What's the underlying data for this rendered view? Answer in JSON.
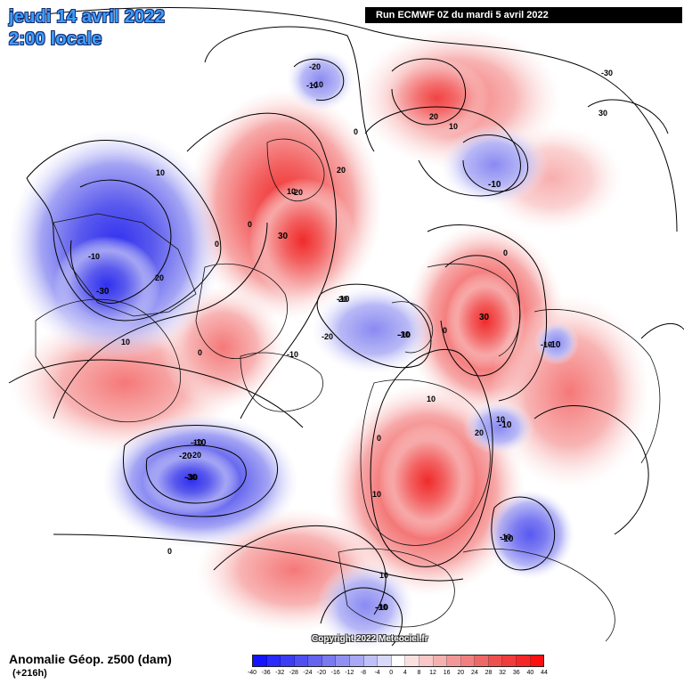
{
  "header": {
    "date_line": "jeudi 14 avril 2022",
    "time_line": "2:00 locale",
    "run_info": "Run ECMWF 0Z du mardi 5 avril 2022"
  },
  "footer": {
    "field_title": "Anomalie Géop. z500 (dam)",
    "lead_time": "(+216h)",
    "copyright": "Copyright 2022 Meteociel.fr"
  },
  "legend": {
    "ticks": [
      "-40",
      "-36",
      "-32",
      "-28",
      "-24",
      "-20",
      "-16",
      "-12",
      "-8",
      "-4",
      "0",
      "4",
      "8",
      "12",
      "16",
      "20",
      "24",
      "28",
      "32",
      "36",
      "40",
      "44"
    ],
    "colors": [
      "#1414ff",
      "#2a2aff",
      "#3c3cf5",
      "#5050f0",
      "#6464ee",
      "#7a7aef",
      "#9090f2",
      "#a8a8f5",
      "#c0c0f8",
      "#d8d8fb",
      "#ffffff",
      "#fbe0e0",
      "#f8c8c8",
      "#f5b0b0",
      "#f29898",
      "#f08080",
      "#ee6868",
      "#ee5050",
      "#f03c3c",
      "#f52828",
      "#ff1010"
    ]
  },
  "map": {
    "anomaly_centers": [
      {
        "label": "30",
        "sign": "positive"
      },
      {
        "label": "30",
        "sign": "positive"
      },
      {
        "label": "-30",
        "sign": "negative"
      },
      {
        "label": "-30",
        "sign": "negative"
      },
      {
        "label": "-20",
        "sign": "negative"
      },
      {
        "label": "-10",
        "sign": "negative"
      },
      {
        "label": "-10",
        "sign": "negative"
      },
      {
        "label": "-10",
        "sign": "negative"
      },
      {
        "label": "-10",
        "sign": "negative"
      },
      {
        "label": "-10",
        "sign": "negative"
      },
      {
        "label": "-10",
        "sign": "negative"
      },
      {
        "label": "-10",
        "sign": "negative"
      },
      {
        "label": "-10",
        "sign": "negative"
      }
    ],
    "contour_labels": [
      "20",
      "10",
      "0",
      "-10",
      "-20",
      "-30",
      "30",
      "20",
      "10",
      "0",
      "-10",
      "-20",
      "10",
      "0",
      "20",
      "10",
      "0",
      "-10",
      "-20",
      "0",
      "10",
      "20",
      "-10",
      "0",
      "10",
      "-10",
      "-20",
      "-30",
      "0",
      "10",
      "20",
      "-10",
      "-10",
      "10",
      "-10",
      "0",
      "-10"
    ]
  }
}
